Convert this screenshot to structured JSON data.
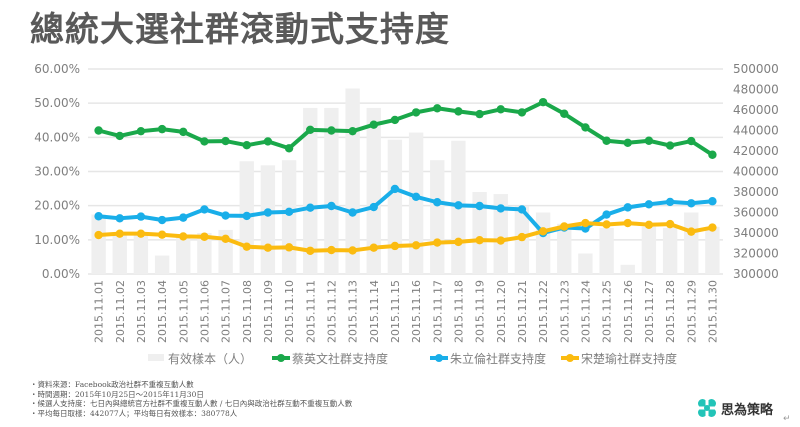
{
  "title": "總統大選社群滾動式支持度",
  "chart_data": {
    "type": "bar+line",
    "title": "總統大選社群滾動式支持度",
    "categories": [
      "2015.11.01",
      "2015.11.02",
      "2015.11.03",
      "2015.11.04",
      "2015.11.05",
      "2015.11.06",
      "2015.11.07",
      "2015.11.08",
      "2015.11.09",
      "2015.11.10",
      "2015.11.11",
      "2015.11.12",
      "2015.11.13",
      "2015.11.14",
      "2015.11.15",
      "2015.11.16",
      "2015.11.17",
      "2015.11.18",
      "2015.11.19",
      "2015.11.20",
      "2015.11.21",
      "2015.11.22",
      "2015.11.23",
      "2015.11.24",
      "2015.11.25",
      "2015.11.26",
      "2015.11.27",
      "2015.11.28",
      "2015.11.29",
      "2015.11.30"
    ],
    "y_left": {
      "ylim": [
        0,
        60
      ],
      "ticks": [
        "0.00%",
        "10.00%",
        "20.00%",
        "30.00%",
        "40.00%",
        "50.00%",
        "60.00%"
      ]
    },
    "y_right": {
      "ylim": [
        300000,
        500000
      ],
      "ticks": [
        "300000",
        "320000",
        "340000",
        "360000",
        "380000",
        "400000",
        "420000",
        "440000",
        "460000",
        "480000",
        "500000"
      ]
    },
    "grid": true,
    "legend_position": "bottom",
    "series": [
      {
        "name": "有效樣本（人）",
        "type": "bar",
        "axis": "right",
        "color": "#efefef",
        "values": [
          358000,
          339000,
          338000,
          318000,
          337000,
          340000,
          343000,
          410000,
          406000,
          411000,
          462000,
          462000,
          481000,
          462000,
          431000,
          438000,
          411000,
          430000,
          380000,
          378000,
          366000,
          360000,
          349000,
          320000,
          345000,
          309000,
          346000,
          345000,
          360000,
          346000
        ]
      },
      {
        "name": "蔡英文社群支持度",
        "type": "line",
        "axis": "left",
        "color": "#1aa84a",
        "values": [
          42.0,
          40.4,
          41.8,
          42.4,
          41.6,
          38.8,
          38.9,
          37.7,
          38.8,
          36.8,
          42.2,
          42.0,
          41.8,
          43.7,
          45.1,
          47.3,
          48.5,
          47.6,
          46.8,
          48.2,
          47.3,
          50.3,
          46.9,
          42.9,
          39.0,
          38.4,
          39.0,
          37.6,
          38.9,
          34.9
        ]
      },
      {
        "name": "朱立倫社群支持度",
        "type": "line",
        "axis": "left",
        "color": "#19aee9",
        "values": [
          16.9,
          16.3,
          16.8,
          15.8,
          16.5,
          18.9,
          17.1,
          17.0,
          18.0,
          18.2,
          19.4,
          19.9,
          18.0,
          19.6,
          24.9,
          22.6,
          21.0,
          20.1,
          19.9,
          19.2,
          18.9,
          12.0,
          13.6,
          13.3,
          17.4,
          19.5,
          20.4,
          21.1,
          20.7,
          21.3
        ]
      },
      {
        "name": "宋楚瑜社群支持度",
        "type": "line",
        "axis": "left",
        "color": "#fbbb10",
        "values": [
          11.4,
          11.8,
          11.8,
          11.5,
          11.0,
          10.9,
          10.3,
          8.0,
          7.7,
          7.8,
          6.8,
          7.0,
          6.9,
          7.7,
          8.2,
          8.4,
          9.2,
          9.4,
          9.9,
          9.8,
          10.8,
          12.5,
          13.9,
          14.9,
          14.5,
          14.9,
          14.4,
          14.6,
          12.4,
          13.6
        ]
      }
    ]
  },
  "notes": [
    "‧資料來源：Facebook政治社群不重複互動人數",
    "‧時間週期：2015年10月25日～2015年11月30日",
    "‧候選人支持度：七日內與總統官方社群不重複互動人數 / 七日內與政治社群互動不重複互動人數",
    "‧平均每日取樣：442077人；平均每日有效樣本：380778人"
  ],
  "brand": {
    "name": "思為策略",
    "logo_icon": "four-leaf-clover-icon",
    "color": "#22c4b8"
  },
  "return_mark": "↵"
}
